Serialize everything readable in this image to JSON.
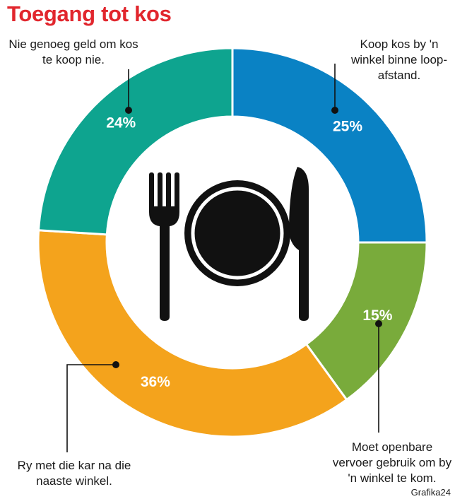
{
  "title": "Toegang tot kos",
  "source": "Grafika24",
  "icon": "plate-fork-knife-icon",
  "chart_data": {
    "type": "pie",
    "title": "Toegang tot kos",
    "slices": [
      {
        "value": 25,
        "label": "25%",
        "annotation": "Koop kos by 'n winkel binne loop-afstand.",
        "color": "#0a82c4"
      },
      {
        "value": 15,
        "label": "15%",
        "annotation": "Moet openbare vervoer gebruik om by 'n winkel te kom.",
        "color": "#79ab3b"
      },
      {
        "value": 36,
        "label": "36%",
        "annotation": "Ry met die kar na die naaste winkel.",
        "color": "#f4a31c"
      },
      {
        "value": 24,
        "label": "24%",
        "annotation": "Nie genoeg geld om kos te koop nie.",
        "color": "#0ea48f"
      }
    ]
  }
}
